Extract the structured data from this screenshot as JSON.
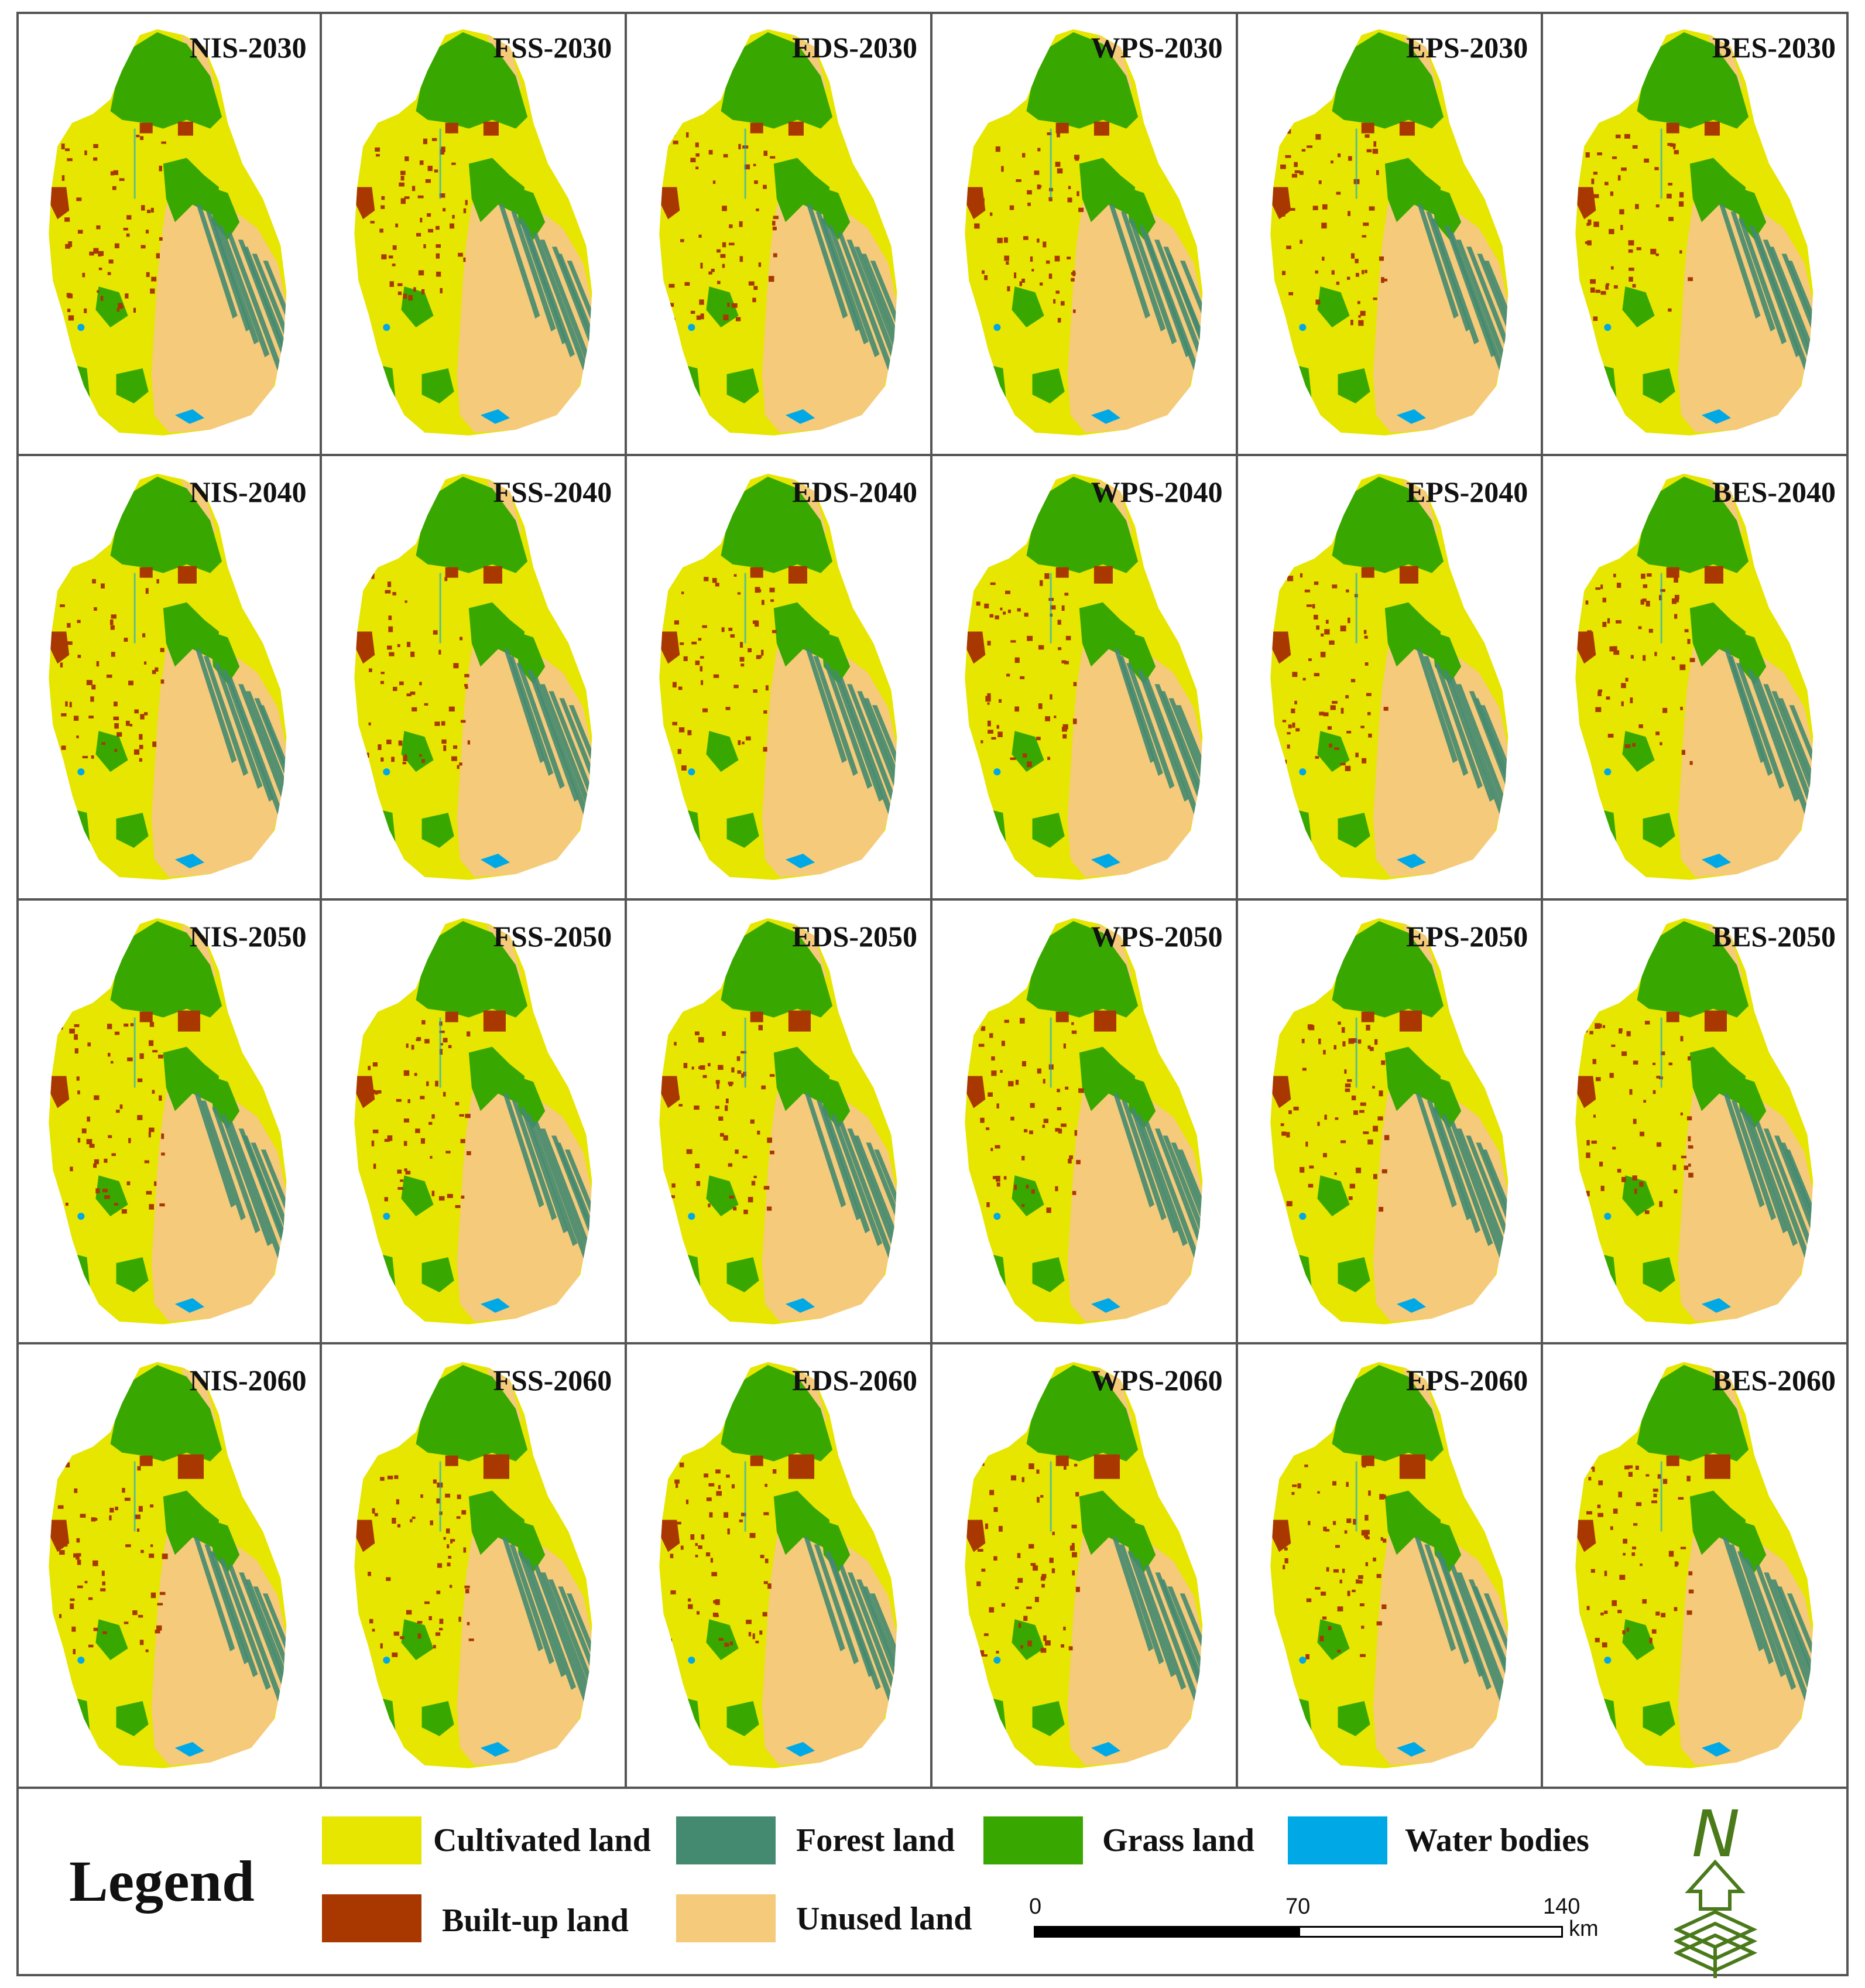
{
  "legend": {
    "title": "Legend",
    "items": [
      {
        "label": "Cultivated land",
        "color": "#e6e600"
      },
      {
        "label": "Forest land",
        "color": "#448a70"
      },
      {
        "label": "Grass land",
        "color": "#38a800"
      },
      {
        "label": "Water bodies",
        "color": "#00a9e6"
      },
      {
        "label": "Built-up land",
        "color": "#a83800"
      },
      {
        "label": "Unused land",
        "color": "#f5ca7a"
      }
    ],
    "scale": {
      "ticks": [
        "0",
        "70",
        "140"
      ],
      "unit": "km"
    },
    "north_label": "N"
  },
  "panels": [
    {
      "label": "NIS-2030"
    },
    {
      "label": "FSS-2030"
    },
    {
      "label": "EDS-2030"
    },
    {
      "label": "WPS-2030"
    },
    {
      "label": "EPS-2030"
    },
    {
      "label": "BES-2030"
    },
    {
      "label": "NIS-2040"
    },
    {
      "label": "FSS-2040"
    },
    {
      "label": "EDS-2040"
    },
    {
      "label": "WPS-2040"
    },
    {
      "label": "EPS-2040"
    },
    {
      "label": "BES-2040"
    },
    {
      "label": "NIS-2050"
    },
    {
      "label": "FSS-2050"
    },
    {
      "label": "EDS-2050"
    },
    {
      "label": "WPS-2050"
    },
    {
      "label": "EPS-2050"
    },
    {
      "label": "BES-2050"
    },
    {
      "label": "NIS-2060"
    },
    {
      "label": "FSS-2060"
    },
    {
      "label": "EDS-2060"
    },
    {
      "label": "WPS-2060"
    },
    {
      "label": "EPS-2060"
    },
    {
      "label": "BES-2060"
    }
  ]
}
